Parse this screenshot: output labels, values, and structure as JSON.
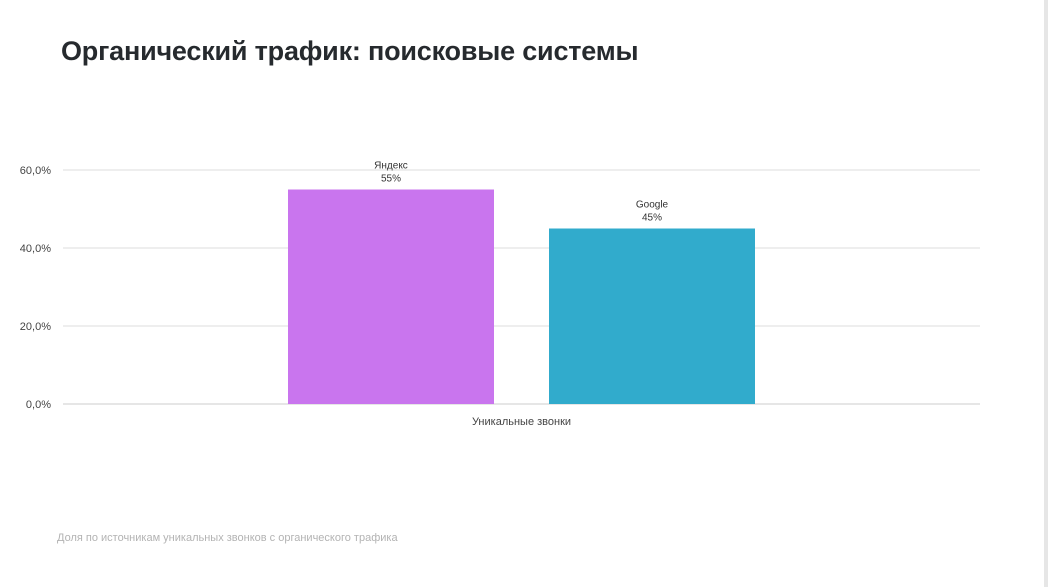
{
  "page": {
    "title": "Органический трафик: поисковые системы",
    "footnote": "Доля по источникам уникальных звонков с органического трафика"
  },
  "chart_data": {
    "type": "bar",
    "title": "",
    "xlabel": "",
    "ylabel": "",
    "categories": [
      "Уникальные звонки"
    ],
    "series": [
      {
        "name": "Яндекс",
        "values": [
          55
        ],
        "label": "55%",
        "color": "#c975ee"
      },
      {
        "name": "Google",
        "values": [
          45
        ],
        "label": "45%",
        "color": "#31abcc"
      }
    ],
    "yticks": [
      {
        "value": 0,
        "label": "0,0%"
      },
      {
        "value": 20,
        "label": "20,0%"
      },
      {
        "value": 40,
        "label": "40,0%"
      },
      {
        "value": 60,
        "label": "60,0%"
      }
    ],
    "ylim": [
      0,
      60
    ],
    "grid": true,
    "legend": "none"
  }
}
